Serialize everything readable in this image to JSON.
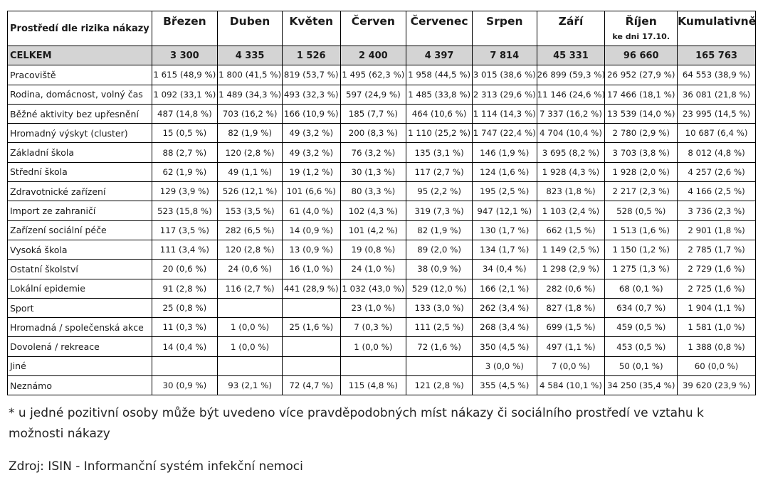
{
  "table": {
    "corner_header": "Prostředí dle rizika nákazy",
    "columns": [
      "Březen",
      "Duben",
      "Květen",
      "Červen",
      "Červenec",
      "Srpen",
      "Září",
      "Říjen",
      "Kumulativně"
    ],
    "october_note": "ke dni 17.10.",
    "total_row": {
      "label": "CELKEM",
      "values": [
        "3 300",
        "4 335",
        "1 526",
        "2 400",
        "4 397",
        "7 814",
        "45 331",
        "96 660",
        "165 763"
      ]
    },
    "rows": [
      {
        "label": "Pracoviště",
        "values": [
          "1 615 (48,9 %)",
          "1 800 (41,5 %)",
          "819 (53,7 %)",
          "1 495 (62,3 %)",
          "1 958 (44,5 %)",
          "3 015 (38,6 %)",
          "26 899 (59,3 %)",
          "26 952 (27,9 %)",
          "64 553 (38,9 %)"
        ]
      },
      {
        "label": "Rodina, domácnost, volný čas",
        "values": [
          "1 092 (33,1 %)",
          "1 489 (34,3 %)",
          "493 (32,3 %)",
          "597 (24,9 %)",
          "1 485 (33,8 %)",
          "2 313 (29,6 %)",
          "11 146 (24,6 %)",
          "17 466 (18,1 %)",
          "36 081 (21,8 %)"
        ]
      },
      {
        "label": "Běžné aktivity bez upřesnění",
        "values": [
          "487 (14,8 %)",
          "703 (16,2 %)",
          "166 (10,9 %)",
          "185 (7,7 %)",
          "464 (10,6 %)",
          "1 114 (14,3 %)",
          "7 337 (16,2 %)",
          "13 539 (14,0 %)",
          "23 995 (14,5 %)"
        ]
      },
      {
        "label": "Hromadný výskyt (cluster)",
        "values": [
          "15 (0,5 %)",
          "82 (1,9 %)",
          "49 (3,2 %)",
          "200 (8,3 %)",
          "1 110 (25,2 %)",
          "1 747 (22,4 %)",
          "4 704 (10,4 %)",
          "2 780 (2,9 %)",
          "10 687 (6,4 %)"
        ]
      },
      {
        "label": "Základní škola",
        "values": [
          "88 (2,7 %)",
          "120 (2,8 %)",
          "49 (3,2 %)",
          "76 (3,2 %)",
          "135 (3,1 %)",
          "146 (1,9 %)",
          "3 695 (8,2 %)",
          "3 703 (3,8 %)",
          "8 012 (4,8 %)"
        ]
      },
      {
        "label": "Střední škola",
        "values": [
          "62 (1,9 %)",
          "49 (1,1 %)",
          "19 (1,2 %)",
          "30 (1,3 %)",
          "117 (2,7 %)",
          "124 (1,6 %)",
          "1 928 (4,3 %)",
          "1 928 (2,0 %)",
          "4 257 (2,6 %)"
        ]
      },
      {
        "label": "Zdravotnické zařízení",
        "values": [
          "129 (3,9 %)",
          "526 (12,1 %)",
          "101 (6,6 %)",
          "80 (3,3 %)",
          "95 (2,2 %)",
          "195 (2,5 %)",
          "823 (1,8 %)",
          "2 217 (2,3 %)",
          "4 166 (2,5 %)"
        ]
      },
      {
        "label": "Import ze zahraničí",
        "values": [
          "523 (15,8 %)",
          "153 (3,5 %)",
          "61 (4,0 %)",
          "102 (4,3 %)",
          "319 (7,3 %)",
          "947 (12,1 %)",
          "1 103 (2,4 %)",
          "528 (0,5 %)",
          "3 736 (2,3 %)"
        ]
      },
      {
        "label": "Zařízení sociální péče",
        "values": [
          "117 (3,5 %)",
          "282 (6,5 %)",
          "14 (0,9 %)",
          "101 (4,2 %)",
          "82 (1,9 %)",
          "130 (1,7 %)",
          "662 (1,5 %)",
          "1 513 (1,6 %)",
          "2 901 (1,8 %)"
        ]
      },
      {
        "label": "Vysoká škola",
        "values": [
          "111 (3,4 %)",
          "120 (2,8 %)",
          "13 (0,9 %)",
          "19 (0,8 %)",
          "89 (2,0 %)",
          "134 (1,7 %)",
          "1 149 (2,5 %)",
          "1 150 (1,2 %)",
          "2 785 (1,7 %)"
        ]
      },
      {
        "label": "Ostatní školství",
        "values": [
          "20 (0,6 %)",
          "24 (0,6 %)",
          "16 (1,0 %)",
          "24 (1,0 %)",
          "38 (0,9 %)",
          "34 (0,4 %)",
          "1 298 (2,9 %)",
          "1 275 (1,3 %)",
          "2 729 (1,6 %)"
        ]
      },
      {
        "label": "Lokální epidemie",
        "values": [
          "91 (2,8 %)",
          "116 (2,7 %)",
          "441 (28,9 %)",
          "1 032 (43,0 %)",
          "529 (12,0 %)",
          "166 (2,1 %)",
          "282 (0,6 %)",
          "68 (0,1 %)",
          "2 725 (1,6 %)"
        ]
      },
      {
        "label": "Sport",
        "values": [
          "25 (0,8 %)",
          "",
          "",
          "23 (1,0 %)",
          "133 (3,0 %)",
          "262 (3,4 %)",
          "827 (1,8 %)",
          "634 (0,7 %)",
          "1 904 (1,1 %)"
        ]
      },
      {
        "label": "Hromadná / společenská akce",
        "values": [
          "11 (0,3 %)",
          "1 (0,0 %)",
          "25 (1,6 %)",
          "7 (0,3 %)",
          "111 (2,5 %)",
          "268 (3,4 %)",
          "699 (1,5 %)",
          "459 (0,5 %)",
          "1 581 (1,0 %)"
        ]
      },
      {
        "label": "Dovolená / rekreace",
        "values": [
          "14 (0,4 %)",
          "1 (0,0 %)",
          "",
          "1 (0,0 %)",
          "72 (1,6 %)",
          "350 (4,5 %)",
          "497 (1,1 %)",
          "453 (0,5 %)",
          "1 388 (0,8 %)"
        ]
      },
      {
        "label": "Jiné",
        "values": [
          "",
          "",
          "",
          "",
          "",
          "3 (0,0 %)",
          "7 (0,0 %)",
          "50 (0,1 %)",
          "60 (0,0 %)"
        ]
      },
      {
        "label": "Neznámo",
        "values": [
          "30 (0,9 %)",
          "93 (2,1 %)",
          "72 (4,7 %)",
          "115 (4,8 %)",
          "121 (2,8 %)",
          "355 (4,5 %)",
          "4 584 (10,1 %)",
          "34 250 (35,4 %)",
          "39 620 (23,9 %)"
        ]
      }
    ]
  },
  "footnote": "* u jedné pozitivní osoby může být uvedeno více pravděpodobných míst nákazy či sociálního prostředí ve vztahu k možnosti nákazy",
  "source": "Zdroj: ISIN - Informanční systém infekční nemoci"
}
